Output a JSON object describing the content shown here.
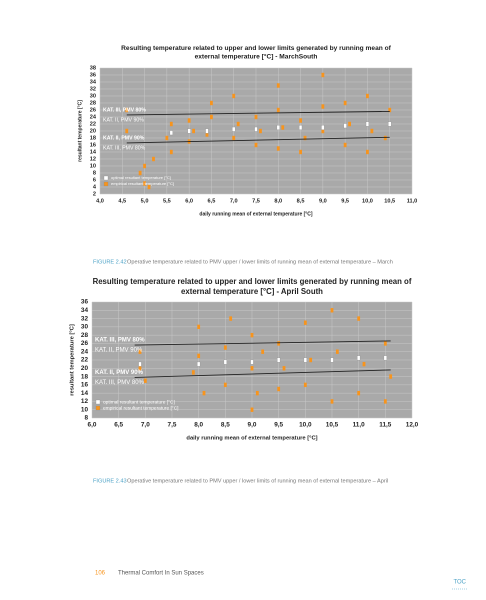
{
  "chart_data": [
    {
      "type": "scatter",
      "title": [
        "Resulting temperature related to upper and lower limits generated by running mean of",
        "external temperature [°C] - MarchSouth"
      ],
      "xlabel": "daily running mean of external temperature [°C]",
      "ylabel": "resultant temperature [°C]",
      "xlim": [
        4.0,
        11.0
      ],
      "xticks": [
        {
          "value": 4.0,
          "label": "4,0"
        },
        {
          "value": 4.5,
          "label": "4,5"
        },
        {
          "value": 5.0,
          "label": "5,0"
        },
        {
          "value": 5.5,
          "label": "5,5"
        },
        {
          "value": 6.0,
          "label": "6,0"
        },
        {
          "value": 6.5,
          "label": "6,5"
        },
        {
          "value": 7.0,
          "label": "7,0"
        },
        {
          "value": 7.5,
          "label": "7,5"
        },
        {
          "value": 8.0,
          "label": "8,0"
        },
        {
          "value": 8.5,
          "label": "8,5"
        },
        {
          "value": 9.0,
          "label": "9,0"
        },
        {
          "value": 9.5,
          "label": "9,5"
        },
        {
          "value": 10.0,
          "label": "10,0"
        },
        {
          "value": 10.5,
          "label": "10,5"
        },
        {
          "value": 11.0,
          "label": "11,0"
        }
      ],
      "ylim": [
        2,
        38
      ],
      "yticks": [
        2,
        4,
        6,
        8,
        10,
        12,
        14,
        16,
        18,
        20,
        22,
        24,
        26,
        28,
        30,
        32,
        34,
        36,
        38
      ],
      "grid": true,
      "series": [
        {
          "name": "optimal resultant temperature [°C]",
          "color": "#ffffff",
          "x": [
            5.6,
            6.0,
            6.4,
            7.0,
            7.5,
            8.0,
            8.5,
            9.0,
            9.5,
            10.0,
            10.5
          ],
          "values": [
            19.5,
            20,
            20,
            20.5,
            20.5,
            21,
            21,
            21,
            21.5,
            22,
            22
          ]
        },
        {
          "name": "empirical resultant temperature [°C]",
          "color": "#f7941d",
          "x": [
            4.6,
            4.6,
            4.9,
            5.0,
            5.0,
            5.1,
            5.2,
            5.5,
            5.6,
            5.6,
            6.0,
            6.0,
            6.1,
            6.4,
            6.5,
            6.5,
            7.0,
            7.0,
            7.1,
            7.5,
            7.5,
            7.6,
            8.0,
            8.0,
            8.0,
            8.1,
            8.5,
            8.5,
            8.6,
            9.0,
            9.0,
            9.0,
            9.5,
            9.5,
            9.6,
            10.0,
            10.0,
            10.1,
            10.4,
            10.5
          ],
          "values": [
            20,
            26,
            8,
            5,
            10,
            4,
            12,
            18,
            22,
            14,
            17,
            23,
            20,
            19,
            28,
            24,
            18,
            30,
            22,
            16,
            24,
            20,
            15,
            26,
            33,
            21,
            14,
            23,
            18,
            20,
            36,
            27,
            16,
            28,
            22,
            14,
            30,
            20,
            18,
            26
          ]
        }
      ],
      "limit_lines": [
        {
          "color": "#222222",
          "x": [
            4.6,
            10.5
          ],
          "values": [
            24.6,
            25.6
          ]
        },
        {
          "color": "#222222",
          "x": [
            4.6,
            10.5
          ],
          "values": [
            16.6,
            18.2
          ]
        }
      ],
      "annotations": [
        "KAT. III, PMV 80%",
        "KAT. II, PMV 90%",
        "KAT. II, PMV 90%",
        "KAT. III, PMV 80%"
      ]
    },
    {
      "type": "scatter",
      "title": [
        "Resulting temperature related to upper and lower limits generated by running mean of",
        "external temperature [°C] - April South"
      ],
      "xlabel": "daily running mean of external temperature [°C]",
      "ylabel": "resultant temperature [°C]",
      "xlim": [
        6.0,
        12.0
      ],
      "xticks": [
        {
          "value": 6.0,
          "label": "6,0"
        },
        {
          "value": 6.5,
          "label": "6,5"
        },
        {
          "value": 7.0,
          "label": "7,0"
        },
        {
          "value": 7.5,
          "label": "7,5"
        },
        {
          "value": 8.0,
          "label": "8,0"
        },
        {
          "value": 8.5,
          "label": "8,5"
        },
        {
          "value": 9.0,
          "label": "9,0"
        },
        {
          "value": 9.5,
          "label": "9,5"
        },
        {
          "value": 10.0,
          "label": "10,0"
        },
        {
          "value": 10.5,
          "label": "10,5"
        },
        {
          "value": 11.0,
          "label": "11,0"
        },
        {
          "value": 11.5,
          "label": "11,5"
        },
        {
          "value": 12.0,
          "label": "12,0"
        }
      ],
      "ylim": [
        8,
        36
      ],
      "yticks": [
        8,
        10,
        12,
        14,
        16,
        18,
        20,
        22,
        24,
        26,
        28,
        30,
        32,
        34,
        36
      ],
      "grid": true,
      "series": [
        {
          "name": "optimal resultant temperature [°C]",
          "color": "#ffffff",
          "x": [
            6.9,
            8.0,
            8.5,
            9.0,
            9.5,
            10.0,
            10.5,
            11.0,
            11.5
          ],
          "values": [
            21,
            21,
            21.5,
            21.5,
            22,
            22,
            22,
            22.5,
            22.5
          ]
        },
        {
          "name": "empirical resultant temperature [°C]",
          "color": "#f7941d",
          "x": [
            6.9,
            6.9,
            7.0,
            7.9,
            8.0,
            8.0,
            8.1,
            8.5,
            8.5,
            8.6,
            9.0,
            9.0,
            9.0,
            9.1,
            9.2,
            9.5,
            9.5,
            9.6,
            10.0,
            10.0,
            10.1,
            10.5,
            10.5,
            10.6,
            11.0,
            11.0,
            11.1,
            11.5,
            11.5,
            11.6
          ],
          "values": [
            20,
            24,
            17,
            19,
            30,
            23,
            14,
            16,
            25,
            32,
            10,
            20,
            28,
            14,
            24,
            15,
            26,
            20,
            16,
            31,
            22,
            12,
            34,
            24,
            14,
            32,
            21,
            12,
            26,
            18
          ]
        }
      ],
      "limit_lines": [
        {
          "color": "#222222",
          "x": [
            6.8,
            11.6
          ],
          "values": [
            25.6,
            26.6
          ]
        },
        {
          "color": "#222222",
          "x": [
            6.8,
            11.6
          ],
          "values": [
            17.8,
            19.6
          ]
        }
      ],
      "annotations": [
        "KAT. III, PMV 80%",
        "KAT. II, PMV 90%",
        "KAT. II, PMV 90%",
        "KAT. III, PMV 80%"
      ]
    }
  ],
  "captions": [
    {
      "label": "FIGURE 2.42",
      "text": "Operative temperature related to PMV upper / lower limits of running mean of external temperature – March"
    },
    {
      "label": "FIGURE 2.43",
      "text": "Operative temperature related to PMV upper / lower limits of running mean of external temperature – April"
    }
  ],
  "footer": {
    "page": "106",
    "title": "Thermal Comfort In Sun Spaces",
    "toc": "TOC"
  }
}
